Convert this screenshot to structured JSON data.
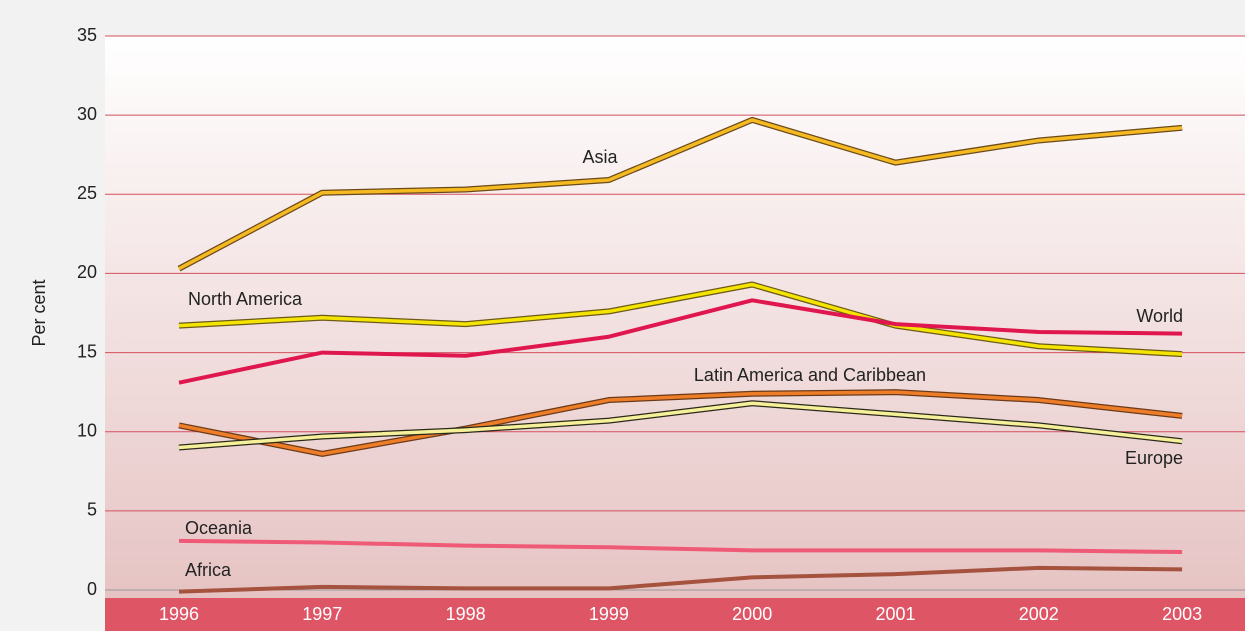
{
  "chart_data": {
    "type": "line",
    "y_label": "Per cent",
    "categories": [
      "1996",
      "1997",
      "1998",
      "1999",
      "2000",
      "2001",
      "2002",
      "2003"
    ],
    "series": [
      {
        "name": "Asia",
        "color": "#f5b921",
        "outline": "#6b4a1a",
        "values": [
          20.3,
          25.1,
          25.3,
          25.9,
          29.7,
          27.0,
          28.4,
          29.2
        ]
      },
      {
        "name": "North America",
        "color": "#f5e400",
        "outline": "#6b5a1a",
        "values": [
          16.7,
          17.2,
          16.8,
          17.6,
          19.3,
          16.7,
          15.4,
          14.9
        ]
      },
      {
        "name": "World",
        "color": "#e0174e",
        "values": [
          13.1,
          15.0,
          14.8,
          16.0,
          18.3,
          16.8,
          16.3,
          16.2
        ]
      },
      {
        "name": "Latin America and Caribbean",
        "color": "#ee7d28",
        "outline": "#6b3a1a",
        "values": [
          10.4,
          8.6,
          10.2,
          12.0,
          12.4,
          12.5,
          12.0,
          11.0
        ]
      },
      {
        "name": "Europe",
        "color": "#f7f09a",
        "outline": "#2a2a1a",
        "values": [
          9.0,
          9.7,
          10.1,
          10.7,
          11.8,
          11.1,
          10.4,
          9.4
        ]
      },
      {
        "name": "Oceania",
        "color": "#ef5a77",
        "values": [
          3.1,
          3.0,
          2.8,
          2.7,
          2.5,
          2.5,
          2.5,
          2.4
        ]
      },
      {
        "name": "Africa",
        "color": "#a5523f",
        "values": [
          -0.1,
          0.2,
          0.1,
          0.1,
          0.8,
          1.0,
          1.4,
          1.3
        ]
      }
    ],
    "ylim": [
      0,
      35
    ],
    "yticks": [
      0,
      5,
      10,
      15,
      20,
      25,
      30,
      35
    ],
    "grid": true
  }
}
